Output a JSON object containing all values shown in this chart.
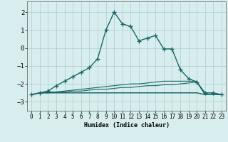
{
  "xlabel": "Humidex (Indice chaleur)",
  "xlim": [
    -0.5,
    23.5
  ],
  "ylim": [
    -3.5,
    2.6
  ],
  "yticks": [
    -3,
    -2,
    -1,
    0,
    1,
    2
  ],
  "xticks": [
    0,
    1,
    2,
    3,
    4,
    5,
    6,
    7,
    8,
    9,
    10,
    11,
    12,
    13,
    14,
    15,
    16,
    17,
    18,
    19,
    20,
    21,
    22,
    23
  ],
  "bg_color": "#d8eeee",
  "grid_color": "#aacccc",
  "line_color": "#1a6666",
  "main_line": [
    -2.6,
    -2.5,
    -2.4,
    -2.1,
    -1.85,
    -1.6,
    -1.35,
    -1.1,
    -0.6,
    1.0,
    2.0,
    1.35,
    1.2,
    0.4,
    0.55,
    0.7,
    -0.05,
    -0.05,
    -1.2,
    -1.7,
    -1.9,
    -2.5,
    -2.5,
    -2.6
  ],
  "line1": [
    -2.6,
    -2.5,
    -2.5,
    -2.5,
    -2.5,
    -2.5,
    -2.5,
    -2.5,
    -2.5,
    -2.5,
    -2.5,
    -2.5,
    -2.5,
    -2.5,
    -2.5,
    -2.5,
    -2.5,
    -2.5,
    -2.5,
    -2.5,
    -2.5,
    -2.6,
    -2.6,
    -2.6
  ],
  "line2": [
    -2.6,
    -2.5,
    -2.5,
    -2.5,
    -2.5,
    -2.5,
    -2.5,
    -2.5,
    -2.5,
    -2.5,
    -2.5,
    -2.5,
    -2.5,
    -2.5,
    -2.5,
    -2.5,
    -2.5,
    -2.5,
    -2.5,
    -2.5,
    -2.5,
    -2.6,
    -2.6,
    -2.6
  ],
  "line3": [
    -2.6,
    -2.5,
    -2.5,
    -2.45,
    -2.45,
    -2.4,
    -2.4,
    -2.35,
    -2.3,
    -2.3,
    -2.25,
    -2.2,
    -2.2,
    -2.15,
    -2.1,
    -2.1,
    -2.05,
    -2.05,
    -2.0,
    -1.95,
    -1.9,
    -2.6,
    -2.6,
    -2.6
  ],
  "line4": [
    -2.6,
    -2.5,
    -2.45,
    -2.45,
    -2.4,
    -2.35,
    -2.3,
    -2.25,
    -2.2,
    -2.15,
    -2.1,
    -2.05,
    -2.0,
    -2.0,
    -1.95,
    -1.9,
    -1.85,
    -1.85,
    -1.85,
    -1.85,
    -1.85,
    -2.6,
    -2.6,
    -2.6
  ],
  "markersize": 2.5,
  "linewidth_main": 1.0,
  "linewidth_flat": 0.8
}
